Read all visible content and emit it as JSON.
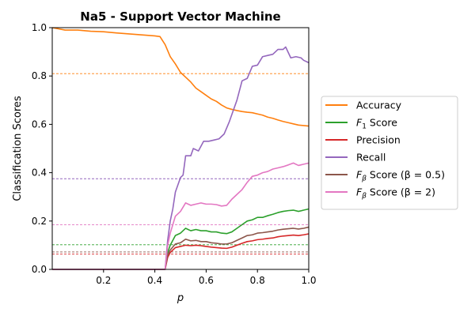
{
  "chart_data": {
    "type": "line",
    "title": "Na5 - Support Vector Machine",
    "xlabel": "p",
    "ylabel": "Classification Scores",
    "xlim": [
      0.0,
      1.0
    ],
    "ylim": [
      0.0,
      1.0
    ],
    "xticks": [
      0.2,
      0.4,
      0.6,
      0.8,
      1.0
    ],
    "yticks": [
      0.0,
      0.2,
      0.4,
      0.6,
      0.8,
      1.0
    ],
    "grid": false,
    "legend_position": "right-outside",
    "series": [
      {
        "name": "Accuracy",
        "color": "#ff7f0e",
        "baseline": 0.81,
        "points": [
          [
            0.0,
            1.0
          ],
          [
            0.05,
            0.99
          ],
          [
            0.1,
            0.99
          ],
          [
            0.15,
            0.985
          ],
          [
            0.2,
            0.983
          ],
          [
            0.25,
            0.978
          ],
          [
            0.3,
            0.974
          ],
          [
            0.35,
            0.97
          ],
          [
            0.4,
            0.966
          ],
          [
            0.42,
            0.963
          ],
          [
            0.44,
            0.93
          ],
          [
            0.46,
            0.88
          ],
          [
            0.48,
            0.85
          ],
          [
            0.5,
            0.815
          ],
          [
            0.52,
            0.795
          ],
          [
            0.54,
            0.775
          ],
          [
            0.56,
            0.75
          ],
          [
            0.58,
            0.735
          ],
          [
            0.6,
            0.72
          ],
          [
            0.62,
            0.705
          ],
          [
            0.64,
            0.695
          ],
          [
            0.66,
            0.68
          ],
          [
            0.68,
            0.668
          ],
          [
            0.7,
            0.662
          ],
          [
            0.72,
            0.657
          ],
          [
            0.74,
            0.653
          ],
          [
            0.76,
            0.65
          ],
          [
            0.78,
            0.648
          ],
          [
            0.8,
            0.643
          ],
          [
            0.82,
            0.638
          ],
          [
            0.84,
            0.63
          ],
          [
            0.86,
            0.625
          ],
          [
            0.88,
            0.618
          ],
          [
            0.9,
            0.612
          ],
          [
            0.92,
            0.607
          ],
          [
            0.94,
            0.602
          ],
          [
            0.96,
            0.597
          ],
          [
            0.98,
            0.595
          ],
          [
            1.0,
            0.593
          ]
        ]
      },
      {
        "name": "F₁ Score",
        "label_main": "F",
        "label_sub": "1",
        "label_rest": " Score",
        "color": "#2ca02c",
        "baseline": 0.102,
        "points": [
          [
            0.0,
            0.0
          ],
          [
            0.44,
            0.0
          ],
          [
            0.45,
            0.07
          ],
          [
            0.46,
            0.1
          ],
          [
            0.48,
            0.14
          ],
          [
            0.5,
            0.15
          ],
          [
            0.52,
            0.17
          ],
          [
            0.54,
            0.16
          ],
          [
            0.56,
            0.165
          ],
          [
            0.58,
            0.16
          ],
          [
            0.6,
            0.16
          ],
          [
            0.62,
            0.155
          ],
          [
            0.64,
            0.155
          ],
          [
            0.66,
            0.15
          ],
          [
            0.68,
            0.148
          ],
          [
            0.7,
            0.155
          ],
          [
            0.72,
            0.17
          ],
          [
            0.74,
            0.185
          ],
          [
            0.76,
            0.2
          ],
          [
            0.78,
            0.205
          ],
          [
            0.8,
            0.215
          ],
          [
            0.82,
            0.215
          ],
          [
            0.84,
            0.222
          ],
          [
            0.86,
            0.228
          ],
          [
            0.88,
            0.235
          ],
          [
            0.9,
            0.24
          ],
          [
            0.92,
            0.243
          ],
          [
            0.94,
            0.245
          ],
          [
            0.96,
            0.24
          ],
          [
            0.98,
            0.245
          ],
          [
            1.0,
            0.25
          ]
        ]
      },
      {
        "name": "Precision",
        "color": "#d62728",
        "baseline": 0.063,
        "points": [
          [
            0.0,
            0.0
          ],
          [
            0.44,
            0.0
          ],
          [
            0.45,
            0.05
          ],
          [
            0.46,
            0.07
          ],
          [
            0.48,
            0.09
          ],
          [
            0.5,
            0.095
          ],
          [
            0.52,
            0.1
          ],
          [
            0.54,
            0.098
          ],
          [
            0.56,
            0.1
          ],
          [
            0.58,
            0.098
          ],
          [
            0.6,
            0.095
          ],
          [
            0.62,
            0.092
          ],
          [
            0.64,
            0.09
          ],
          [
            0.66,
            0.088
          ],
          [
            0.68,
            0.087
          ],
          [
            0.7,
            0.092
          ],
          [
            0.72,
            0.1
          ],
          [
            0.74,
            0.108
          ],
          [
            0.76,
            0.115
          ],
          [
            0.78,
            0.118
          ],
          [
            0.8,
            0.123
          ],
          [
            0.82,
            0.125
          ],
          [
            0.84,
            0.128
          ],
          [
            0.86,
            0.13
          ],
          [
            0.88,
            0.135
          ],
          [
            0.9,
            0.138
          ],
          [
            0.92,
            0.14
          ],
          [
            0.94,
            0.142
          ],
          [
            0.96,
            0.14
          ],
          [
            0.98,
            0.143
          ],
          [
            1.0,
            0.147
          ]
        ]
      },
      {
        "name": "Recall",
        "color": "#9467bd",
        "baseline": 0.375,
        "points": [
          [
            0.0,
            0.0
          ],
          [
            0.44,
            0.0
          ],
          [
            0.45,
            0.12
          ],
          [
            0.46,
            0.2
          ],
          [
            0.47,
            0.25
          ],
          [
            0.48,
            0.32
          ],
          [
            0.5,
            0.38
          ],
          [
            0.51,
            0.39
          ],
          [
            0.52,
            0.47
          ],
          [
            0.54,
            0.47
          ],
          [
            0.55,
            0.5
          ],
          [
            0.57,
            0.49
          ],
          [
            0.59,
            0.53
          ],
          [
            0.61,
            0.53
          ],
          [
            0.63,
            0.535
          ],
          [
            0.65,
            0.54
          ],
          [
            0.67,
            0.56
          ],
          [
            0.69,
            0.61
          ],
          [
            0.7,
            0.64
          ],
          [
            0.72,
            0.7
          ],
          [
            0.74,
            0.78
          ],
          [
            0.76,
            0.79
          ],
          [
            0.78,
            0.84
          ],
          [
            0.8,
            0.845
          ],
          [
            0.82,
            0.88
          ],
          [
            0.84,
            0.885
          ],
          [
            0.86,
            0.89
          ],
          [
            0.88,
            0.91
          ],
          [
            0.9,
            0.91
          ],
          [
            0.91,
            0.92
          ],
          [
            0.93,
            0.875
          ],
          [
            0.95,
            0.88
          ],
          [
            0.97,
            0.875
          ],
          [
            0.98,
            0.865
          ],
          [
            1.0,
            0.855
          ]
        ]
      },
      {
        "name": "F_β Score (β = 0.5)",
        "label_main": "F",
        "label_sub": "β",
        "label_rest": " Score (β = 0.5)",
        "color": "#8c564b",
        "baseline": 0.072,
        "points": [
          [
            0.0,
            0.0
          ],
          [
            0.44,
            0.0
          ],
          [
            0.45,
            0.06
          ],
          [
            0.46,
            0.08
          ],
          [
            0.48,
            0.105
          ],
          [
            0.5,
            0.11
          ],
          [
            0.52,
            0.125
          ],
          [
            0.54,
            0.118
          ],
          [
            0.56,
            0.12
          ],
          [
            0.58,
            0.115
          ],
          [
            0.6,
            0.115
          ],
          [
            0.62,
            0.11
          ],
          [
            0.64,
            0.108
          ],
          [
            0.66,
            0.105
          ],
          [
            0.68,
            0.105
          ],
          [
            0.7,
            0.11
          ],
          [
            0.72,
            0.12
          ],
          [
            0.74,
            0.13
          ],
          [
            0.76,
            0.14
          ],
          [
            0.78,
            0.143
          ],
          [
            0.8,
            0.15
          ],
          [
            0.82,
            0.152
          ],
          [
            0.84,
            0.155
          ],
          [
            0.86,
            0.158
          ],
          [
            0.88,
            0.163
          ],
          [
            0.9,
            0.166
          ],
          [
            0.92,
            0.168
          ],
          [
            0.94,
            0.17
          ],
          [
            0.96,
            0.167
          ],
          [
            0.98,
            0.17
          ],
          [
            1.0,
            0.175
          ]
        ]
      },
      {
        "name": "F_β Score (β = 2)",
        "label_main": "F",
        "label_sub": "β",
        "label_rest": " Score (β = 2)",
        "color": "#e377c2",
        "baseline": 0.185,
        "points": [
          [
            0.0,
            0.0
          ],
          [
            0.44,
            0.0
          ],
          [
            0.45,
            0.1
          ],
          [
            0.46,
            0.15
          ],
          [
            0.48,
            0.22
          ],
          [
            0.5,
            0.24
          ],
          [
            0.52,
            0.275
          ],
          [
            0.54,
            0.265
          ],
          [
            0.56,
            0.27
          ],
          [
            0.58,
            0.275
          ],
          [
            0.6,
            0.27
          ],
          [
            0.62,
            0.27
          ],
          [
            0.64,
            0.268
          ],
          [
            0.66,
            0.262
          ],
          [
            0.68,
            0.265
          ],
          [
            0.7,
            0.29
          ],
          [
            0.72,
            0.31
          ],
          [
            0.74,
            0.33
          ],
          [
            0.76,
            0.36
          ],
          [
            0.78,
            0.385
          ],
          [
            0.8,
            0.39
          ],
          [
            0.82,
            0.4
          ],
          [
            0.84,
            0.405
          ],
          [
            0.86,
            0.415
          ],
          [
            0.88,
            0.42
          ],
          [
            0.9,
            0.425
          ],
          [
            0.92,
            0.432
          ],
          [
            0.94,
            0.44
          ],
          [
            0.96,
            0.43
          ],
          [
            0.98,
            0.435
          ],
          [
            1.0,
            0.44
          ]
        ]
      }
    ]
  }
}
